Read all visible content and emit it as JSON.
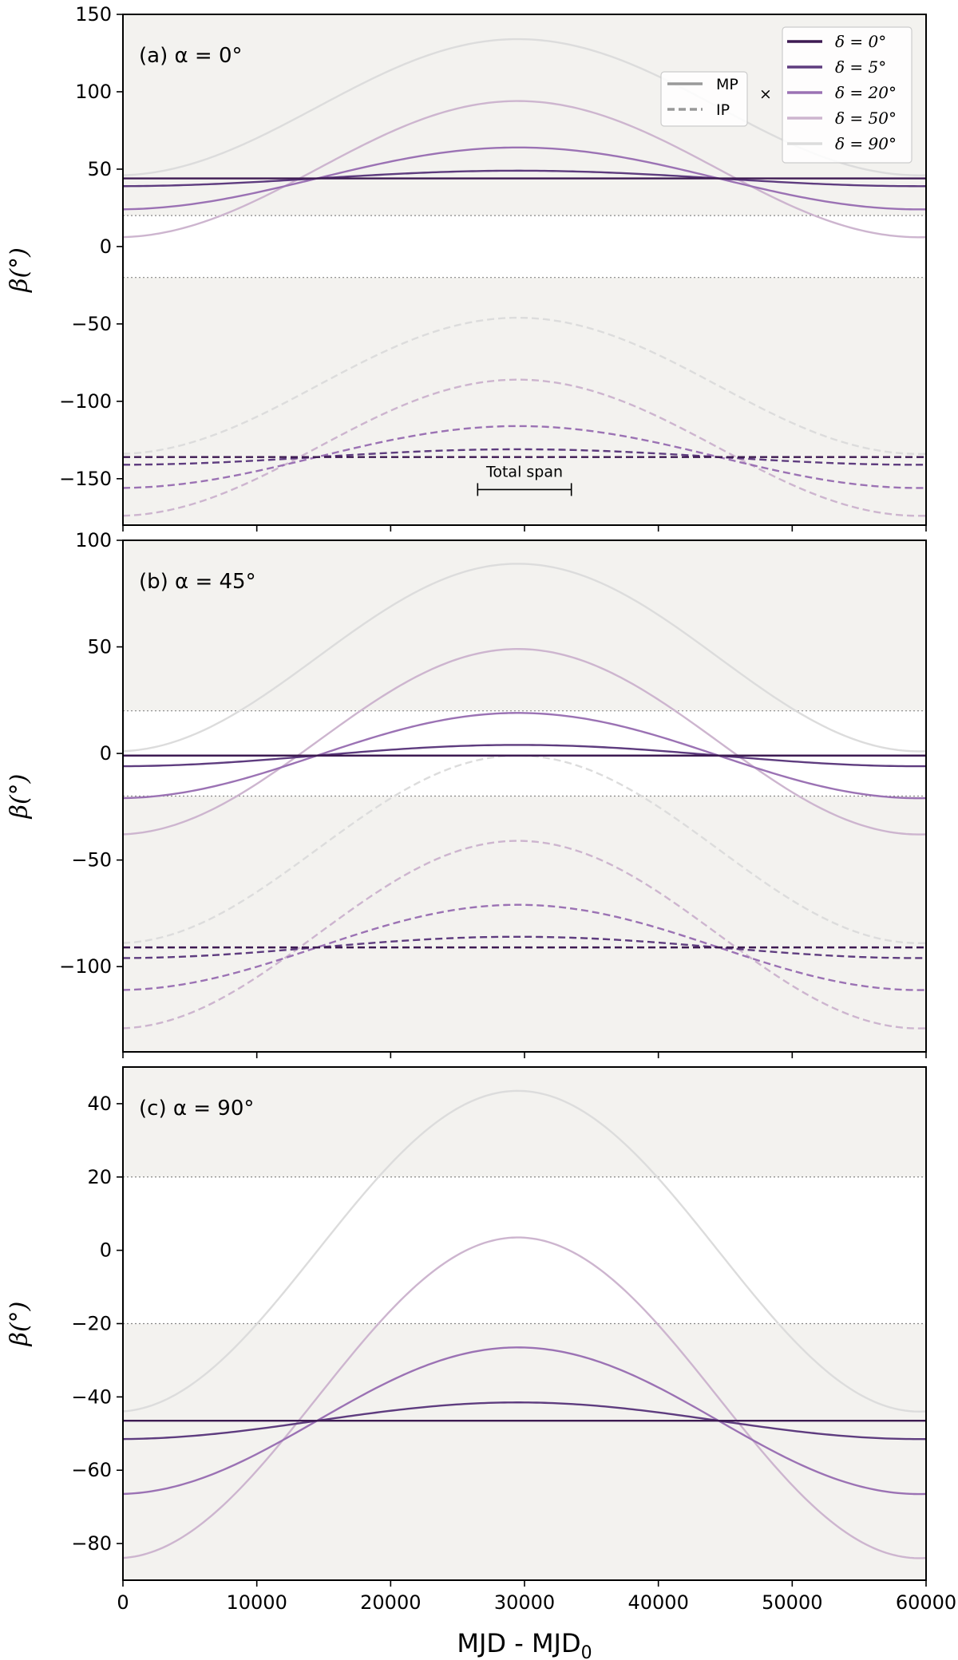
{
  "chart_data": {
    "type": "line",
    "x_range": [
      0,
      60000
    ],
    "x_ticks": [
      0,
      10000,
      20000,
      30000,
      40000,
      50000,
      60000
    ],
    "x_tick_labels": [
      "0",
      "10000",
      "20000",
      "30000",
      "40000",
      "50000",
      "60000"
    ],
    "xlabel": "MJD - MJD",
    "xlabel_sub": "0",
    "ylabel": "β(°)",
    "peak_x": 29500,
    "shaded_band": [
      -20,
      20
    ],
    "legend_style": [
      {
        "name": "MP",
        "style": "solid"
      },
      {
        "name": "IP",
        "style": "dashed"
      }
    ],
    "legend_times": "×",
    "legend_delta": [
      {
        "label": "δ = 0°",
        "color": "#3d1a52"
      },
      {
        "label": "δ = 5°",
        "color": "#5e3c7f"
      },
      {
        "label": "δ = 20°",
        "color": "#9b72b4"
      },
      {
        "label": "δ = 50°",
        "color": "#cdb5cf"
      },
      {
        "label": "δ = 90°",
        "color": "#dcdcdc"
      }
    ],
    "annotation": {
      "text": "Total span",
      "x_start": 26500,
      "x_end": 33500,
      "y": -157
    },
    "panels": [
      {
        "label": "(a) α = 0°",
        "ylim": [
          -180,
          150
        ],
        "y_ticks": [
          150,
          100,
          50,
          0,
          -50,
          -100,
          -150
        ],
        "y_tick_labels": [
          "150",
          "100",
          "50",
          "0",
          "−50",
          "−100",
          "−150"
        ],
        "series": [
          {
            "name": "MP δ=0°",
            "style": "solid",
            "delta": "δ = 0°",
            "color": "#3d1a52",
            "y_min": 44,
            "y_max": 44
          },
          {
            "name": "MP δ=5°",
            "style": "solid",
            "delta": "δ = 5°",
            "color": "#5e3c7f",
            "y_min": 39,
            "y_max": 49
          },
          {
            "name": "MP δ=20°",
            "style": "solid",
            "delta": "δ = 20°",
            "color": "#9b72b4",
            "y_min": 24,
            "y_max": 64
          },
          {
            "name": "MP δ=50°",
            "style": "solid",
            "delta": "δ = 50°",
            "color": "#cdb5cf",
            "y_min": 6,
            "y_max": 94
          },
          {
            "name": "MP δ=90°",
            "style": "solid",
            "delta": "δ = 90°",
            "color": "#dcdcdc",
            "y_min": 46,
            "y_max": 134
          },
          {
            "name": "IP δ=0°",
            "style": "dashed",
            "delta": "δ = 0°",
            "color": "#3d1a52",
            "y_min": -136,
            "y_max": -136
          },
          {
            "name": "IP δ=5°",
            "style": "dashed",
            "delta": "δ = 5°",
            "color": "#5e3c7f",
            "y_min": -141,
            "y_max": -131
          },
          {
            "name": "IP δ=20°",
            "style": "dashed",
            "delta": "δ = 20°",
            "color": "#9b72b4",
            "y_min": -156,
            "y_max": -116
          },
          {
            "name": "IP δ=50°",
            "style": "dashed",
            "delta": "δ = 50°",
            "color": "#cdb5cf",
            "y_min": -174,
            "y_max": -86
          },
          {
            "name": "IP δ=90°",
            "style": "dashed",
            "delta": "δ = 90°",
            "color": "#dcdcdc",
            "y_min": -134,
            "y_max": -46
          }
        ]
      },
      {
        "label": "(b) α = 45°",
        "ylim": [
          -140,
          100
        ],
        "y_ticks": [
          100,
          50,
          0,
          -50,
          -100
        ],
        "y_tick_labels": [
          "100",
          "50",
          "0",
          "−50",
          "−100"
        ],
        "series": [
          {
            "name": "MP δ=0°",
            "style": "solid",
            "delta": "δ = 0°",
            "color": "#3d1a52",
            "y_min": -1,
            "y_max": -1
          },
          {
            "name": "MP δ=5°",
            "style": "solid",
            "delta": "δ = 5°",
            "color": "#5e3c7f",
            "y_min": -6,
            "y_max": 4
          },
          {
            "name": "MP δ=20°",
            "style": "solid",
            "delta": "δ = 20°",
            "color": "#9b72b4",
            "y_min": -21,
            "y_max": 19
          },
          {
            "name": "MP δ=50°",
            "style": "solid",
            "delta": "δ = 50°",
            "color": "#cdb5cf",
            "y_min": -38,
            "y_max": 49
          },
          {
            "name": "MP δ=90°",
            "style": "solid",
            "delta": "δ = 90°",
            "color": "#dcdcdc",
            "y_min": 1,
            "y_max": 89
          },
          {
            "name": "IP δ=0°",
            "style": "dashed",
            "delta": "δ = 0°",
            "color": "#3d1a52",
            "y_min": -91,
            "y_max": -91
          },
          {
            "name": "IP δ=5°",
            "style": "dashed",
            "delta": "δ = 5°",
            "color": "#5e3c7f",
            "y_min": -96,
            "y_max": -86
          },
          {
            "name": "IP δ=20°",
            "style": "dashed",
            "delta": "δ = 20°",
            "color": "#9b72b4",
            "y_min": -111,
            "y_max": -71
          },
          {
            "name": "IP δ=50°",
            "style": "dashed",
            "delta": "δ = 50°",
            "color": "#cdb5cf",
            "y_min": -129,
            "y_max": -41
          },
          {
            "name": "IP δ=90°",
            "style": "dashed",
            "delta": "δ = 90°",
            "color": "#dcdcdc",
            "y_min": -89,
            "y_max": -1
          }
        ]
      },
      {
        "label": "(c) α = 90°",
        "ylim": [
          -90,
          50
        ],
        "y_ticks": [
          40,
          20,
          0,
          -20,
          -40,
          -60,
          -80
        ],
        "y_tick_labels": [
          "40",
          "20",
          "0",
          "−20",
          "−40",
          "−60",
          "−80"
        ],
        "series": [
          {
            "name": "MP δ=0°",
            "style": "solid",
            "delta": "δ = 0°",
            "color": "#3d1a52",
            "y_min": -46.5,
            "y_max": -46.5
          },
          {
            "name": "MP δ=5°",
            "style": "solid",
            "delta": "δ = 5°",
            "color": "#5e3c7f",
            "y_min": -51.5,
            "y_max": -41.5
          },
          {
            "name": "MP δ=20°",
            "style": "solid",
            "delta": "δ = 20°",
            "color": "#9b72b4",
            "y_min": -66.5,
            "y_max": -26.5
          },
          {
            "name": "MP δ=50°",
            "style": "solid",
            "delta": "δ = 50°",
            "color": "#cdb5cf",
            "y_min": -84,
            "y_max": 3.5
          },
          {
            "name": "MP δ=90°",
            "style": "solid",
            "delta": "δ = 90°",
            "color": "#dcdcdc",
            "y_min": -44,
            "y_max": 43.5
          }
        ]
      }
    ]
  }
}
